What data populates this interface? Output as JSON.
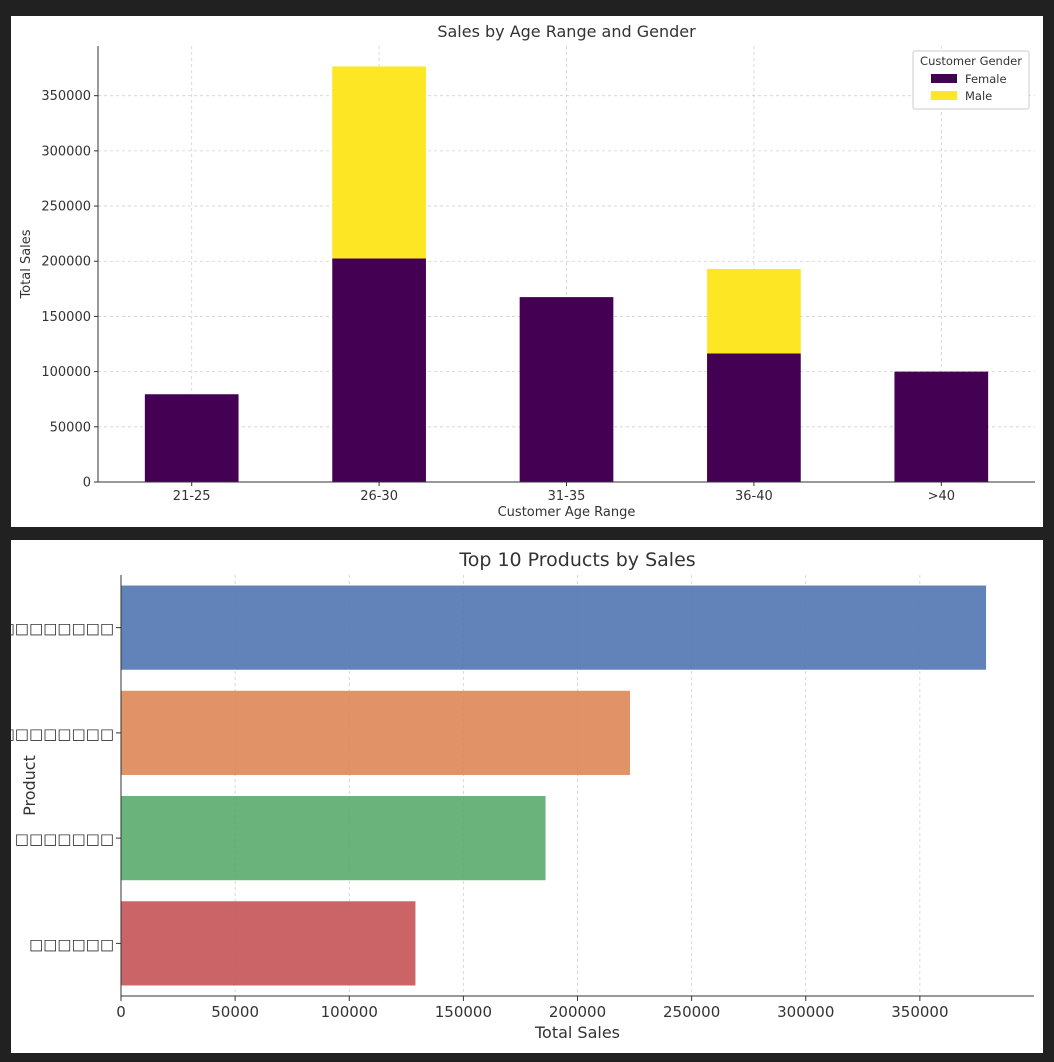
{
  "chart_data": [
    {
      "type": "bar",
      "stacked": true,
      "title": "Sales by Age Range and Gender",
      "xlabel": "Customer Age Range",
      "ylabel": "Total Sales",
      "categories": [
        "21-25",
        "26-30",
        "31-35",
        "36-40",
        ">40"
      ],
      "series": [
        {
          "name": "Female",
          "values": [
            79500,
            202500,
            167500,
            116500,
            100000
          ],
          "color": "#440154"
        },
        {
          "name": "Male",
          "values": [
            0,
            174000,
            0,
            76500,
            0
          ],
          "color": "#fde725"
        }
      ],
      "ylim": [
        0,
        395000
      ],
      "yticks": [
        0,
        50000,
        100000,
        150000,
        200000,
        250000,
        300000,
        350000
      ],
      "legend": {
        "title": "Customer Gender",
        "placement": "top-right"
      },
      "grid": true
    },
    {
      "type": "bar",
      "orientation": "horizontal",
      "title": "Top 10 Products by Sales",
      "xlabel": "Total Sales",
      "ylabel": "Product",
      "categories": [
        "□□□□□□□□",
        "□□□□□□□□",
        "□□□□□□□",
        "□□□□□□"
      ],
      "values": [
        379000,
        223000,
        186000,
        129000
      ],
      "colors": [
        "#4c72b0",
        "#dd8452",
        "#55a868",
        "#c44e52"
      ],
      "xlim": [
        0,
        400000
      ],
      "xticks": [
        0,
        50000,
        100000,
        150000,
        200000,
        250000,
        300000,
        350000
      ],
      "grid": true
    }
  ]
}
